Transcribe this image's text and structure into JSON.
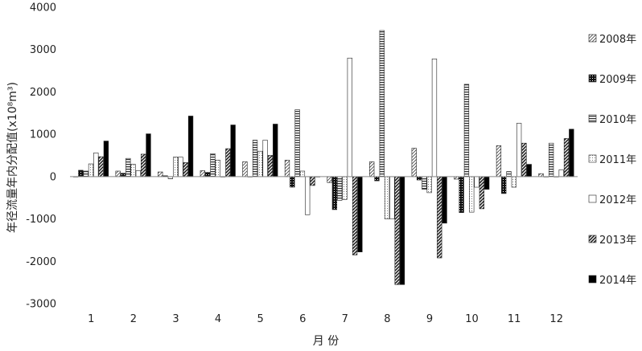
{
  "chart_data": {
    "type": "bar",
    "xlabel": "月 份",
    "ylabel": "年径流量年内分配值(x10⁸m³)",
    "ylim": [
      -3000,
      4000
    ],
    "yticks": [
      "4000",
      "3000",
      "2000",
      "1000",
      "0",
      "-1000",
      "-2000",
      "-3000"
    ],
    "ytick_values": [
      4000,
      3000,
      2000,
      1000,
      0,
      -1000,
      -2000,
      -3000
    ],
    "categories": [
      "1",
      "2",
      "3",
      "4",
      "5",
      "6",
      "7",
      "8",
      "9",
      "10",
      "11",
      "12"
    ],
    "grid": false,
    "legend_position": "right",
    "series": [
      {
        "name": "2008年",
        "pattern": "diag-light",
        "values": [
          0,
          130,
          110,
          140,
          350,
          390,
          -140,
          350,
          670,
          -60,
          730,
          70
        ]
      },
      {
        "name": "2009年",
        "pattern": "dots-dark",
        "values": [
          150,
          80,
          20,
          100,
          0,
          -250,
          -780,
          -100,
          -80,
          -850,
          -400,
          0
        ]
      },
      {
        "name": "2010年",
        "pattern": "hstripe",
        "values": [
          130,
          430,
          -50,
          540,
          860,
          1580,
          -560,
          3450,
          -300,
          2180,
          120,
          790
        ]
      },
      {
        "name": "2011年",
        "pattern": "dots-light",
        "values": [
          300,
          290,
          460,
          390,
          600,
          130,
          -540,
          -1000,
          -380,
          -840,
          -250,
          0
        ]
      },
      {
        "name": "2012年",
        "pattern": "white",
        "values": [
          560,
          140,
          460,
          0,
          860,
          -900,
          2800,
          -1000,
          2780,
          -250,
          1260,
          160
        ]
      },
      {
        "name": "2013年",
        "pattern": "diag-heavy",
        "values": [
          470,
          530,
          330,
          660,
          500,
          -210,
          -1850,
          -2550,
          -1920,
          -760,
          790,
          900
        ]
      },
      {
        "name": "2014年",
        "pattern": "solid",
        "values": [
          840,
          1010,
          1430,
          1220,
          1240,
          0,
          -1780,
          -2550,
          -1100,
          -300,
          290,
          1120
        ]
      }
    ]
  }
}
